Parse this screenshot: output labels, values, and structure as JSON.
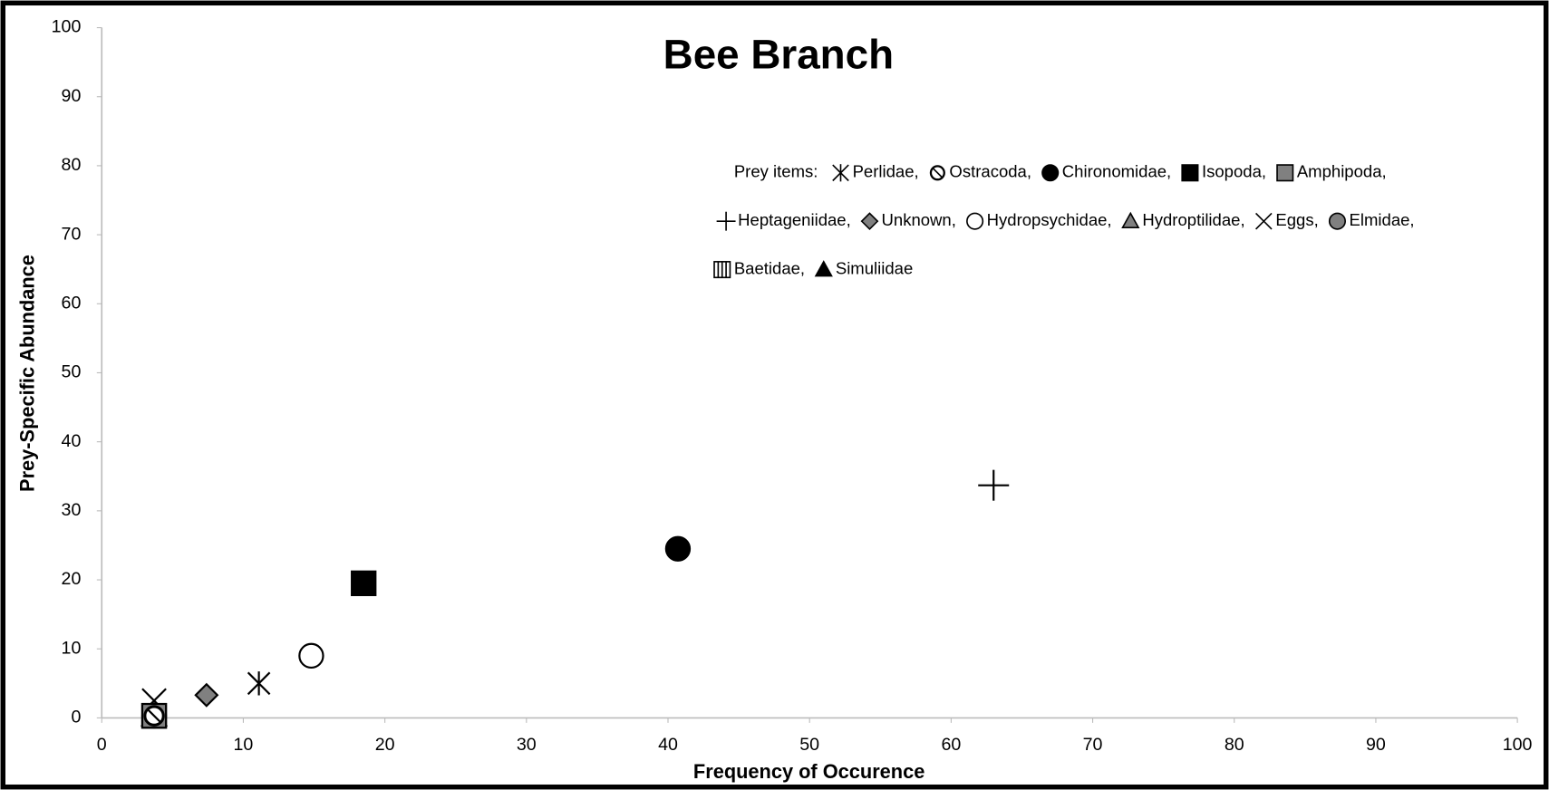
{
  "chart_data": {
    "type": "scatter",
    "title": "Bee Branch",
    "xlabel": "Frequency of Occurence",
    "ylabel": "Prey-Specific Abundance",
    "legend_title": "Prey items:",
    "xlim": [
      0,
      100
    ],
    "ylim": [
      0,
      100
    ],
    "xticks": [
      0,
      10,
      20,
      30,
      40,
      50,
      60,
      70,
      80,
      90,
      100
    ],
    "yticks": [
      0,
      10,
      20,
      30,
      40,
      50,
      60,
      70,
      80,
      90,
      100
    ],
    "series": [
      {
        "name": "Perlidae,",
        "marker": "asterisk",
        "color": "#000000",
        "x": [
          11.1
        ],
        "values": [
          5.0
        ]
      },
      {
        "name": "Ostracoda,",
        "marker": "circle-slash",
        "color": "#000000",
        "x": [
          3.7
        ],
        "values": [
          0.3
        ]
      },
      {
        "name": "Chironomidae,",
        "marker": "circle",
        "color": "#000000",
        "x": [
          40.7
        ],
        "values": [
          24.5
        ]
      },
      {
        "name": "Isopoda,",
        "marker": "square",
        "color": "#000000",
        "x": [
          18.5
        ],
        "values": [
          19.5
        ]
      },
      {
        "name": "Amphipoda,",
        "marker": "square",
        "color": "#808080",
        "x": [
          3.7
        ],
        "values": [
          0.3
        ]
      },
      {
        "name": "Heptageniidae,",
        "marker": "plus",
        "color": "#000000",
        "x": [
          63.0
        ],
        "values": [
          33.7
        ]
      },
      {
        "name": "Unknown,",
        "marker": "diamond",
        "color": "#808080",
        "x": [
          7.4
        ],
        "values": [
          3.3
        ]
      },
      {
        "name": "Hydropsychidae,",
        "marker": "circle-open",
        "color": "#ffffff",
        "x": [
          14.8
        ],
        "values": [
          9.0
        ]
      },
      {
        "name": "Hydroptilidae,",
        "marker": "triangle",
        "color": "#808080",
        "x": [
          3.7
        ],
        "values": [
          0.3
        ]
      },
      {
        "name": "Eggs,",
        "marker": "x",
        "color": "#000000",
        "x": [
          3.7
        ],
        "values": [
          2.5
        ]
      },
      {
        "name": "Elmidae,",
        "marker": "circle",
        "color": "#808080",
        "x": [
          3.7
        ],
        "values": [
          0.3
        ]
      },
      {
        "name": "Baetidae,",
        "marker": "square-hatch",
        "color": "#ffffff",
        "x": [
          3.7
        ],
        "values": [
          0.3
        ]
      },
      {
        "name": "Simuliidae",
        "marker": "triangle",
        "color": "#000000",
        "x": [
          3.7
        ],
        "values": [
          0.3
        ]
      }
    ]
  }
}
